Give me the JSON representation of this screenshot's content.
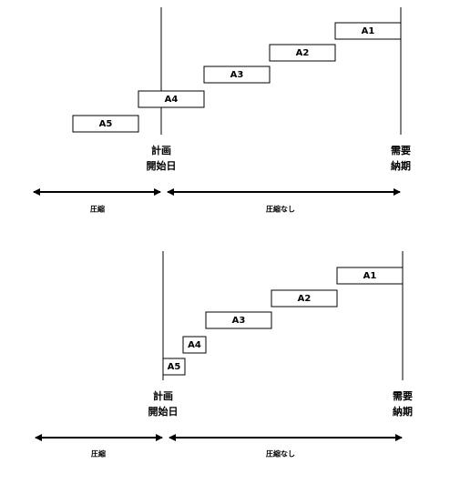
{
  "panels": [
    {
      "tasks": [
        "A1",
        "A2",
        "A3",
        "A4",
        "A5"
      ],
      "start_label": [
        "計画",
        "開始日"
      ],
      "due_label": [
        "需要",
        "納期"
      ],
      "compressed_label": "圧縮",
      "uncompressed_label": "圧縮なし"
    },
    {
      "tasks": [
        "A1",
        "A2",
        "A3",
        "A4",
        "A5"
      ],
      "start_label": [
        "計画",
        "開始日"
      ],
      "due_label": [
        "需要",
        "納期"
      ],
      "compressed_label": "圧縮",
      "uncompressed_label": "圧縮なし"
    }
  ]
}
